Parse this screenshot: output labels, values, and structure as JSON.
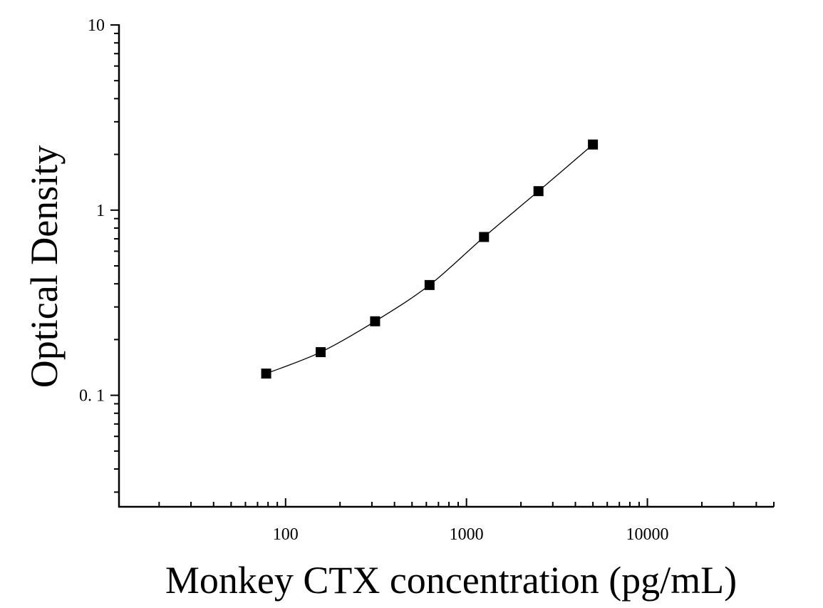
{
  "chart_data": {
    "type": "scatter",
    "title": "",
    "xlabel": "Monkey CTX concentration (pg/mL)",
    "ylabel": "Optical Density",
    "x_scale": "log",
    "y_scale": "log",
    "xlim": [
      12,
      50000
    ],
    "ylim": [
      0.025,
      10
    ],
    "x_ticks": [
      {
        "value": 100,
        "label": "100"
      },
      {
        "value": 1000,
        "label": "1000"
      },
      {
        "value": 10000,
        "label": "10000"
      }
    ],
    "y_ticks": [
      {
        "value": 0.1,
        "label": "0. 1"
      },
      {
        "value": 1,
        "label": "1"
      },
      {
        "value": 10,
        "label": "10"
      }
    ],
    "grid": false,
    "series": [
      {
        "marker": "square",
        "color": "#000000",
        "fit_curve": true,
        "points": [
          {
            "x": 78.125,
            "y": 0.131
          },
          {
            "x": 156.25,
            "y": 0.171
          },
          {
            "x": 312.5,
            "y": 0.251
          },
          {
            "x": 625,
            "y": 0.394
          },
          {
            "x": 1250,
            "y": 0.716
          },
          {
            "x": 2500,
            "y": 1.266
          },
          {
            "x": 5000,
            "y": 2.261
          }
        ]
      }
    ]
  }
}
